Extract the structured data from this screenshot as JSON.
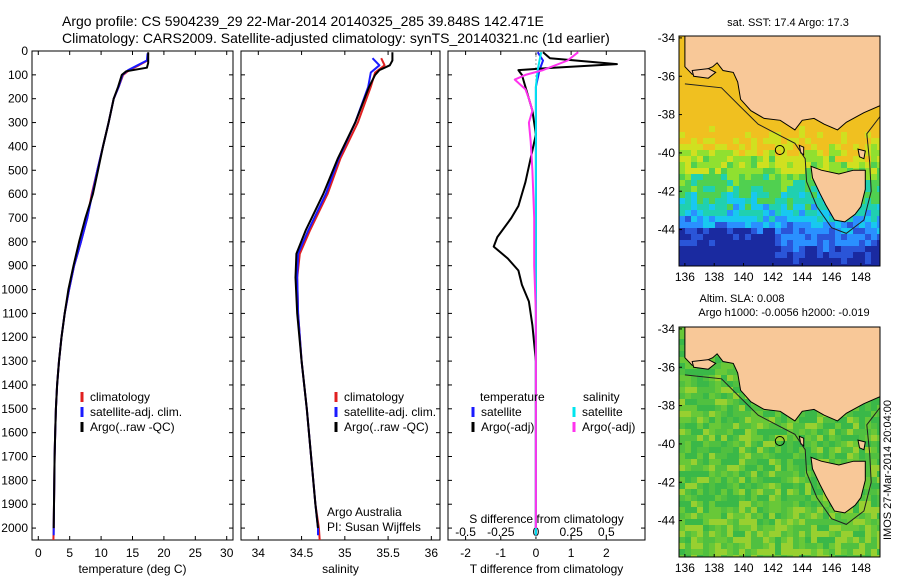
{
  "header": {
    "line1": "Argo profile: CS 5904239_29 22-Mar-2014 20140325_285 39.848S 142.471E",
    "line2": "Climatology: CARS2009. Satellite-adjusted climatology: synTS_20140321.nc (1d earlier)"
  },
  "depth_ticks": [
    "0",
    "100",
    "200",
    "300",
    "400",
    "500",
    "600",
    "700",
    "800",
    "900",
    "1000",
    "1100",
    "1200",
    "1300",
    "1400",
    "1500",
    "1600",
    "1700",
    "1800",
    "1900",
    "2000"
  ],
  "chart_data": [
    {
      "type": "line",
      "name": "temperature-profile",
      "xlabel": "temperature (deg C)",
      "ylabel": "",
      "xlim": [
        -1,
        31
      ],
      "ylim": [
        2050,
        0
      ],
      "xticks": [
        "0",
        "5",
        "10",
        "15",
        "20",
        "25",
        "30"
      ],
      "legend": [
        "climatology",
        "satellite-adj. clim.",
        "Argo(..raw -QC)"
      ],
      "legend_colors": [
        "#e02020",
        "#1a1aff",
        "#000000"
      ],
      "series": [
        {
          "name": "climatology",
          "color": "#e02020",
          "points": [
            [
              17.5,
              10
            ],
            [
              17.4,
              40
            ],
            [
              16,
              60
            ],
            [
              14.5,
              80
            ],
            [
              13.5,
              100
            ],
            [
              12.8,
              150
            ],
            [
              12,
              200
            ],
            [
              11.2,
              300
            ],
            [
              10.3,
              400
            ],
            [
              9.4,
              500
            ],
            [
              8.5,
              600
            ],
            [
              7.8,
              700
            ],
            [
              6.8,
              800
            ],
            [
              5.7,
              900
            ],
            [
              4.9,
              1000
            ],
            [
              4.2,
              1100
            ],
            [
              3.7,
              1200
            ],
            [
              3.3,
              1300
            ],
            [
              3.0,
              1400
            ],
            [
              2.8,
              1500
            ],
            [
              2.7,
              1600
            ],
            [
              2.6,
              1700
            ],
            [
              2.55,
              1800
            ],
            [
              2.5,
              1900
            ],
            [
              2.45,
              2000
            ],
            [
              2.4,
              2050
            ]
          ]
        },
        {
          "name": "satellite-adj. clim.",
          "color": "#1a1aff",
          "points": [
            [
              17.4,
              10
            ],
            [
              17.3,
              40
            ],
            [
              15.8,
              60
            ],
            [
              14.3,
              80
            ],
            [
              13.4,
              100
            ],
            [
              12.8,
              150
            ],
            [
              12,
              200
            ],
            [
              11.2,
              300
            ],
            [
              10.3,
              400
            ],
            [
              9.4,
              500
            ],
            [
              8.6,
              600
            ],
            [
              7.8,
              700
            ],
            [
              6.8,
              800
            ],
            [
              5.7,
              900
            ],
            [
              4.9,
              1000
            ],
            [
              4.2,
              1100
            ],
            [
              3.7,
              1200
            ],
            [
              3.3,
              1300
            ],
            [
              3.0,
              1400
            ],
            [
              2.8,
              1500
            ],
            [
              2.7,
              1600
            ],
            [
              2.6,
              1700
            ],
            [
              2.55,
              1800
            ],
            [
              2.5,
              1900
            ],
            [
              2.45,
              2000
            ],
            [
              2.45,
              2030
            ]
          ]
        },
        {
          "name": "Argo(..raw -QC)",
          "color": "#000000",
          "points": [
            [
              17.5,
              5
            ],
            [
              17.5,
              50
            ],
            [
              17.3,
              70
            ],
            [
              14,
              85
            ],
            [
              13.3,
              100
            ],
            [
              12.7,
              150
            ],
            [
              12,
              200
            ],
            [
              11.2,
              300
            ],
            [
              10.3,
              400
            ],
            [
              9.5,
              500
            ],
            [
              8.7,
              600
            ],
            [
              7.5,
              700
            ],
            [
              6.5,
              800
            ],
            [
              5.6,
              900
            ],
            [
              4.8,
              1000
            ],
            [
              4.2,
              1100
            ],
            [
              3.7,
              1200
            ],
            [
              3.3,
              1300
            ],
            [
              3.0,
              1400
            ],
            [
              2.8,
              1500
            ],
            [
              2.7,
              1600
            ],
            [
              2.6,
              1700
            ],
            [
              2.55,
              1800
            ],
            [
              2.5,
              1900
            ],
            [
              2.45,
              2000
            ]
          ]
        }
      ]
    },
    {
      "type": "line",
      "name": "salinity-profile",
      "xlabel": "salinity",
      "ylabel": "",
      "xlim": [
        33.8,
        36.1
      ],
      "ylim": [
        2050,
        0
      ],
      "xticks": [
        "34",
        "34.5",
        "35",
        "35.5",
        "36"
      ],
      "legend": [
        "climatology",
        "satellite-adj. clim.",
        "Argo(..raw -QC)"
      ],
      "legend_colors": [
        "#e02020",
        "#1a1aff",
        "#000000"
      ],
      "annotation": [
        "Argo Australia",
        "PI: Susan Wijffels"
      ],
      "series": [
        {
          "name": "climatology",
          "color": "#e02020",
          "points": [
            [
              35.42,
              30
            ],
            [
              35.46,
              60
            ],
            [
              35.35,
              90
            ],
            [
              35.3,
              150
            ],
            [
              35.15,
              300
            ],
            [
              34.95,
              450
            ],
            [
              34.8,
              600
            ],
            [
              34.6,
              750
            ],
            [
              34.48,
              850
            ],
            [
              34.45,
              950
            ],
            [
              34.46,
              1100
            ],
            [
              34.5,
              1300
            ],
            [
              34.56,
              1500
            ],
            [
              34.61,
              1700
            ],
            [
              34.66,
              1900
            ],
            [
              34.7,
              2000
            ],
            [
              34.71,
              2050
            ]
          ]
        },
        {
          "name": "satellite-adj. clim.",
          "color": "#1a1aff",
          "points": [
            [
              35.32,
              30
            ],
            [
              35.4,
              60
            ],
            [
              35.3,
              90
            ],
            [
              35.27,
              150
            ],
            [
              35.12,
              300
            ],
            [
              34.93,
              450
            ],
            [
              34.78,
              600
            ],
            [
              34.58,
              750
            ],
            [
              34.46,
              850
            ],
            [
              34.45,
              950
            ],
            [
              34.46,
              1100
            ],
            [
              34.5,
              1300
            ],
            [
              34.56,
              1500
            ],
            [
              34.61,
              1700
            ],
            [
              34.66,
              1900
            ],
            [
              34.69,
              2000
            ],
            [
              34.69,
              2030
            ]
          ]
        },
        {
          "name": "Argo(..raw -QC)",
          "color": "#000000",
          "points": [
            [
              35.55,
              5
            ],
            [
              35.55,
              40
            ],
            [
              35.52,
              60
            ],
            [
              35.4,
              80
            ],
            [
              35.35,
              100
            ],
            [
              35.28,
              150
            ],
            [
              35.12,
              300
            ],
            [
              34.92,
              450
            ],
            [
              34.75,
              600
            ],
            [
              34.55,
              750
            ],
            [
              34.44,
              850
            ],
            [
              34.43,
              950
            ],
            [
              34.45,
              1100
            ],
            [
              34.5,
              1300
            ],
            [
              34.56,
              1500
            ],
            [
              34.61,
              1700
            ],
            [
              34.66,
              1900
            ],
            [
              34.69,
              2000
            ]
          ]
        }
      ]
    },
    {
      "type": "line",
      "name": "difference-profile",
      "xlabel": "T difference from climatology",
      "xlabel_top": "S difference from climatology",
      "xlim": [
        -2.5,
        3.1
      ],
      "ylim": [
        2050,
        0
      ],
      "xticks_bottom": [
        "-2",
        "-1",
        "0",
        "1",
        "2"
      ],
      "xticks_top": [
        "-0.5",
        "-0.25",
        "0",
        "0.25",
        "0.5"
      ],
      "legend_temperature": [
        "temperature",
        "satellite",
        "Argo(-adj)"
      ],
      "legend_salinity": [
        "salinity",
        "satellite",
        "Argo(-adj)"
      ],
      "series": [
        {
          "name": "T satellite",
          "color": "#1a1aff",
          "points": [
            [
              0.05,
              5
            ],
            [
              0.2,
              40
            ],
            [
              0.1,
              80
            ],
            [
              0,
              150
            ],
            [
              0,
              300
            ],
            [
              0,
              600
            ],
            [
              0,
              1000
            ],
            [
              0,
              1500
            ],
            [
              0,
              2000
            ],
            [
              0,
              2030
            ]
          ]
        },
        {
          "name": "T Argo(-adj)",
          "color": "#000000",
          "points": [
            [
              0.2,
              5
            ],
            [
              0.4,
              30
            ],
            [
              2.3,
              55
            ],
            [
              0.5,
              70
            ],
            [
              -0.5,
              80
            ],
            [
              -0.4,
              100
            ],
            [
              -0.3,
              150
            ],
            [
              -0.1,
              250
            ],
            [
              0,
              350
            ],
            [
              -0.3,
              550
            ],
            [
              -0.5,
              650
            ],
            [
              -0.7,
              700
            ],
            [
              -1.1,
              780
            ],
            [
              -1.2,
              820
            ],
            [
              -0.8,
              870
            ],
            [
              -0.5,
              920
            ],
            [
              -0.4,
              980
            ],
            [
              -0.2,
              1050
            ],
            [
              -0.1,
              1150
            ],
            [
              0,
              1300
            ],
            [
              0,
              1500
            ],
            [
              0,
              1800
            ],
            [
              0,
              2000
            ]
          ]
        },
        {
          "name": "S satellite",
          "color": "#00e5ee",
          "points": [
            [
              0.15,
              5
            ],
            [
              0.1,
              40
            ],
            [
              0.05,
              80
            ],
            [
              0,
              150
            ],
            [
              0,
              400
            ],
            [
              0,
              800
            ],
            [
              0,
              1200
            ],
            [
              0,
              1600
            ],
            [
              0,
              2000
            ],
            [
              0,
              2030
            ]
          ]
        },
        {
          "name": "S Argo(-adj)",
          "color": "#ff33ee",
          "points": [
            [
              1.2,
              5
            ],
            [
              0.9,
              40
            ],
            [
              0.2,
              80
            ],
            [
              -0.3,
              100
            ],
            [
              -0.6,
              120
            ],
            [
              -0.3,
              160
            ],
            [
              -0.2,
              200
            ],
            [
              -0.1,
              250
            ],
            [
              -0.2,
              300
            ],
            [
              -0.15,
              380
            ],
            [
              -0.1,
              500
            ],
            [
              -0.05,
              700
            ],
            [
              -0.05,
              900
            ],
            [
              0,
              1100
            ],
            [
              0,
              1500
            ],
            [
              0,
              2000
            ]
          ]
        }
      ]
    }
  ],
  "maps": {
    "sst": {
      "title": "sat. SST: 17.4  Argo: 17.3"
    },
    "sla": {
      "title1": "Altim. SLA: 0.008",
      "title2": "Argo h1000: -0.0056  h2000: -0.019"
    },
    "lat_ticks": [
      "-34",
      "-36",
      "-38",
      "-40",
      "-42",
      "-44"
    ],
    "lon_ticks": [
      "136",
      "138",
      "140",
      "142",
      "144",
      "146",
      "148"
    ],
    "side_label": "IMOS 27-Mar-2014 20:04:00"
  }
}
